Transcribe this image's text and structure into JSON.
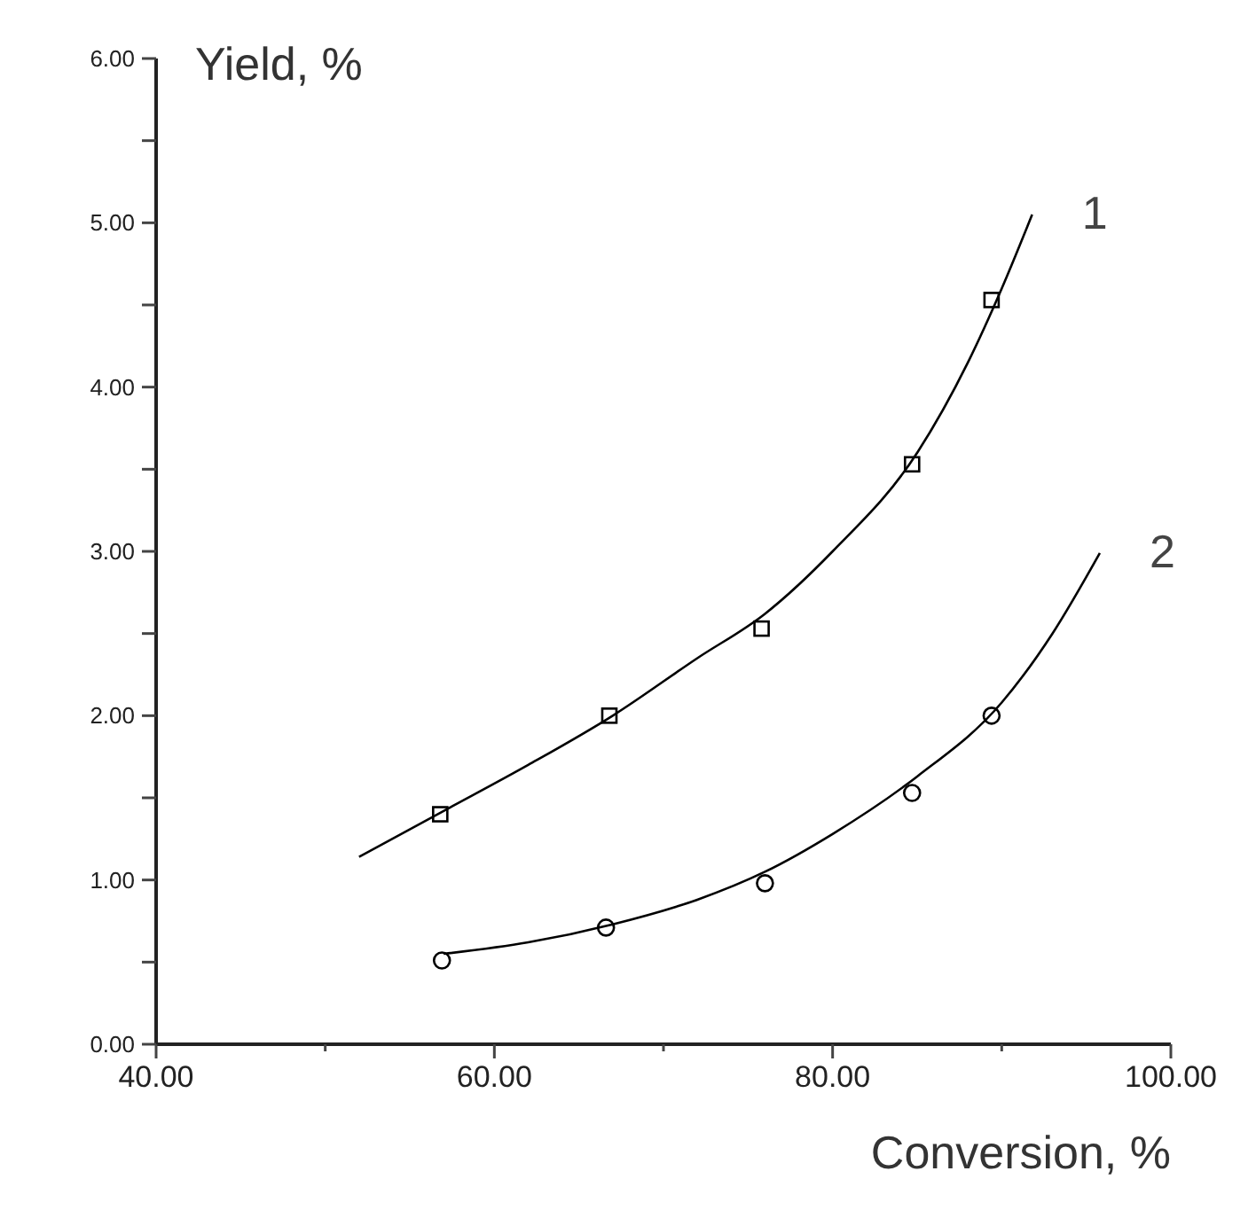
{
  "chart_data": {
    "type": "scatter",
    "xlabel": "Conversion, %",
    "ylabel": "Yield, %",
    "xlim": [
      40,
      100
    ],
    "ylim": [
      0,
      6
    ],
    "xticks": [
      {
        "value": 40,
        "label": "40.00"
      },
      {
        "value": 50,
        "label": null
      },
      {
        "value": 60,
        "label": "60.00"
      },
      {
        "value": 70,
        "label": null
      },
      {
        "value": 80,
        "label": "80.00"
      },
      {
        "value": 90,
        "label": null
      },
      {
        "value": 100,
        "label": "100.00"
      }
    ],
    "yticks": [
      {
        "value": 0,
        "label": "0.00"
      },
      {
        "value": 0.5,
        "label": null
      },
      {
        "value": 1,
        "label": "1.00"
      },
      {
        "value": 1.5,
        "label": null
      },
      {
        "value": 2,
        "label": "2.00"
      },
      {
        "value": 2.5,
        "label": null
      },
      {
        "value": 3,
        "label": "3.00"
      },
      {
        "value": 3.5,
        "label": null
      },
      {
        "value": 4,
        "label": "4.00"
      },
      {
        "value": 4.5,
        "label": null
      },
      {
        "value": 5,
        "label": "5.00"
      },
      {
        "value": 5.5,
        "label": null
      },
      {
        "value": 6,
        "label": "6.00"
      }
    ],
    "grid": false,
    "series": [
      {
        "marker": "square",
        "color": "#000000",
        "x": [
          56.8,
          66.8,
          75.8,
          84.7,
          89.4
        ],
        "values": [
          1.4,
          2.0,
          2.53,
          3.53,
          4.53
        ]
      },
      {
        "marker": "circle",
        "color": "#000000",
        "x": [
          56.9,
          66.6,
          76,
          84.7,
          89.4
        ],
        "values": [
          0.51,
          0.71,
          0.98,
          1.53,
          2.0
        ]
      },
      {
        "type": "line",
        "name": "1",
        "color": "#000000",
        "x": [
          52,
          57,
          62,
          67,
          72,
          76,
          80,
          85,
          88,
          90,
          91.8
        ],
        "values": [
          1.14,
          1.42,
          1.7,
          2.0,
          2.35,
          2.62,
          3.0,
          3.6,
          4.15,
          4.6,
          5.05
        ]
      },
      {
        "type": "line",
        "name": "2",
        "color": "#000000",
        "x": [
          57,
          62,
          67,
          72,
          76,
          80,
          85,
          90,
          93,
          95.8
        ],
        "values": [
          0.55,
          0.62,
          0.73,
          0.88,
          1.05,
          1.28,
          1.63,
          2.08,
          2.5,
          2.99
        ]
      }
    ]
  }
}
